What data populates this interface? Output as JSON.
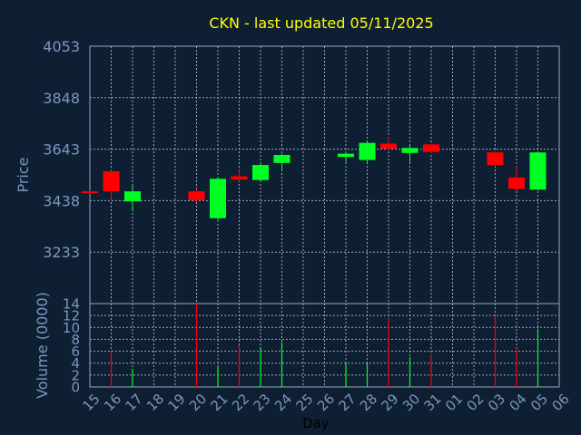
{
  "chart_data": [
    {
      "type": "candlestick",
      "title": "CKN - last updated 05/11/2025",
      "ylabel": "Price",
      "xlabel": "",
      "y_ticks": [
        3233,
        3438,
        3643,
        3848,
        4053
      ],
      "ylim": [
        3028,
        4053
      ],
      "grid": true,
      "x_tick_labels": [
        "15",
        "16",
        "17",
        "18",
        "19",
        "20",
        "21",
        "22",
        "23",
        "24",
        "25",
        "26",
        "27",
        "28",
        "29",
        "30",
        "31",
        "01",
        "02",
        "03",
        "04",
        "05",
        "06"
      ],
      "candles": [
        {
          "day": "15",
          "open": 3475,
          "close": 3468,
          "high": 3478,
          "low": 3465
        },
        {
          "day": "16",
          "open": 3555,
          "close": 3475,
          "high": 3560,
          "low": 3440
        },
        {
          "day": "17",
          "open": 3435,
          "close": 3475,
          "high": 3500,
          "low": 3395
        },
        {
          "day": "20",
          "open": 3475,
          "close": 3440,
          "high": 3485,
          "low": 3432
        },
        {
          "day": "21",
          "open": 3368,
          "close": 3525,
          "high": 3530,
          "low": 3362
        },
        {
          "day": "22",
          "open": 3535,
          "close": 3522,
          "high": 3560,
          "low": 3515
        },
        {
          "day": "23",
          "open": 3520,
          "close": 3580,
          "high": 3592,
          "low": 3518
        },
        {
          "day": "24",
          "open": 3588,
          "close": 3620,
          "high": 3625,
          "low": 3555
        },
        {
          "day": "27",
          "open": 3612,
          "close": 3625,
          "high": 3630,
          "low": 3590
        },
        {
          "day": "28",
          "open": 3600,
          "close": 3668,
          "high": 3670,
          "low": 3588
        },
        {
          "day": "29",
          "open": 3665,
          "close": 3645,
          "high": 3690,
          "low": 3640
        },
        {
          "day": "30",
          "open": 3628,
          "close": 3648,
          "high": 3655,
          "low": 3590
        },
        {
          "day": "31",
          "open": 3662,
          "close": 3632,
          "high": 3665,
          "low": 3628
        },
        {
          "day": "03",
          "open": 3630,
          "close": 3580,
          "high": 3635,
          "low": 3575
        },
        {
          "day": "04",
          "open": 3530,
          "close": 3485,
          "high": 3575,
          "low": 3475
        },
        {
          "day": "05",
          "open": 3482,
          "close": 3630,
          "high": 3632,
          "low": 3480
        }
      ]
    },
    {
      "type": "bar",
      "ylabel": "Volume (0000)",
      "xlabel": "Day",
      "y_ticks": [
        0,
        2,
        4,
        6,
        8,
        10,
        12,
        14
      ],
      "ylim": [
        0,
        14
      ],
      "grid": true,
      "x_tick_labels": [
        "15",
        "16",
        "17",
        "18",
        "19",
        "20",
        "21",
        "22",
        "23",
        "24",
        "25",
        "26",
        "27",
        "28",
        "29",
        "30",
        "31",
        "01",
        "02",
        "03",
        "04",
        "05",
        "06"
      ],
      "volumes": [
        {
          "day": "15",
          "value": 0,
          "direction": "down"
        },
        {
          "day": "16",
          "value": 6,
          "direction": "down"
        },
        {
          "day": "17",
          "value": 3,
          "direction": "up"
        },
        {
          "day": "20",
          "value": 14,
          "direction": "down"
        },
        {
          "day": "21",
          "value": 3.5,
          "direction": "up"
        },
        {
          "day": "22",
          "value": 7,
          "direction": "down"
        },
        {
          "day": "23",
          "value": 6.5,
          "direction": "up"
        },
        {
          "day": "24",
          "value": 7.5,
          "direction": "up"
        },
        {
          "day": "27",
          "value": 4,
          "direction": "up"
        },
        {
          "day": "28",
          "value": 4,
          "direction": "up"
        },
        {
          "day": "29",
          "value": 11.5,
          "direction": "down"
        },
        {
          "day": "30",
          "value": 5,
          "direction": "up"
        },
        {
          "day": "31",
          "value": 5.5,
          "direction": "down"
        },
        {
          "day": "03",
          "value": 12,
          "direction": "down"
        },
        {
          "day": "04",
          "value": 6.5,
          "direction": "down"
        },
        {
          "day": "05",
          "value": 9.8,
          "direction": "up"
        }
      ]
    }
  ],
  "colors": {
    "background": "#0f1f33",
    "frame": "#9aa7bf",
    "grid": "#c0c8d8",
    "title": "#ffff00",
    "label": "#7c95bd",
    "tick_text": "#7c95bd",
    "xlabel": "#000000",
    "up": "#00ff22",
    "down": "#ff0000"
  }
}
